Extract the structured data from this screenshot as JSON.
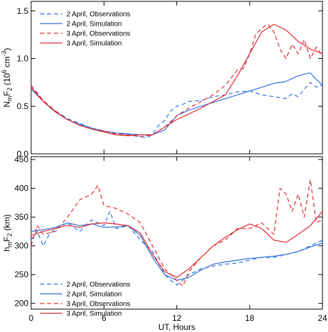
{
  "charts": {
    "x_axis": {
      "label": "UT, Hours",
      "ticks": [
        "0",
        "6",
        "12",
        "18",
        "24"
      ],
      "xlim": [
        0,
        24
      ]
    },
    "legend": [
      "2 April, Observations",
      "2 April, Simulation",
      "3 April, Observations",
      "3 April, Simulation"
    ],
    "colors": {
      "april2": "#2f6fde",
      "april3": "#e0262c"
    }
  },
  "chart_data": [
    {
      "type": "line",
      "ylabel": "NmF2 (10^6 cm^-3)",
      "ylabel_parts": {
        "base": "N",
        "sub1": "m",
        "mid": "F",
        "sub2": "2",
        "rest": " (10",
        "sup": "6",
        "unit": " cm",
        "sup2": "-3",
        "close": ")"
      },
      "ylim": [
        0,
        1.6
      ],
      "yticks": [
        "0.0",
        "0.5",
        "1.0",
        "1.5"
      ],
      "legend_position": "top-left",
      "series": [
        {
          "name": "2 April, Observations",
          "style": "dashed",
          "color": "#2f6fde",
          "x": [
            0,
            1,
            2,
            3,
            4,
            5,
            6,
            7,
            8,
            9,
            9.5,
            10,
            10.5,
            11,
            11.5,
            12,
            12.5,
            13,
            14,
            15,
            16,
            17,
            18,
            19,
            20,
            21,
            21.5,
            22,
            22.5,
            23,
            23.5,
            24
          ],
          "y": [
            0.7,
            0.55,
            0.45,
            0.37,
            0.32,
            0.27,
            0.24,
            0.22,
            0.2,
            0.18,
            0.17,
            0.2,
            0.3,
            0.35,
            0.45,
            0.5,
            0.52,
            0.55,
            0.56,
            0.6,
            0.62,
            0.65,
            0.66,
            0.62,
            0.6,
            0.58,
            0.63,
            0.6,
            0.68,
            0.75,
            0.7,
            0.72
          ]
        },
        {
          "name": "2 April, Simulation",
          "style": "solid",
          "color": "#2f6fde",
          "x": [
            0,
            1,
            2,
            3,
            4,
            5,
            6,
            7,
            8,
            9,
            10,
            11,
            12,
            13,
            14,
            15,
            16,
            17,
            18,
            19,
            20,
            21,
            22,
            23,
            23.5,
            24
          ],
          "y": [
            0.68,
            0.55,
            0.44,
            0.36,
            0.31,
            0.27,
            0.24,
            0.22,
            0.21,
            0.2,
            0.2,
            0.25,
            0.4,
            0.46,
            0.5,
            0.54,
            0.58,
            0.62,
            0.66,
            0.7,
            0.74,
            0.76,
            0.82,
            0.85,
            0.78,
            0.72
          ]
        },
        {
          "name": "3 April, Observations",
          "style": "dashed",
          "color": "#e0262c",
          "x": [
            0,
            1,
            2,
            3,
            4,
            5,
            6,
            7,
            8,
            9,
            10,
            11,
            12,
            13,
            14,
            15,
            16,
            17,
            17.5,
            18,
            18.5,
            19,
            19.5,
            20,
            20.5,
            21,
            21.5,
            22,
            22.5,
            23,
            23.5,
            24
          ],
          "y": [
            0.72,
            0.56,
            0.45,
            0.36,
            0.3,
            0.26,
            0.24,
            0.21,
            0.2,
            0.18,
            0.2,
            0.28,
            0.4,
            0.48,
            0.55,
            0.62,
            0.72,
            0.88,
            0.9,
            1.05,
            1.25,
            1.32,
            1.36,
            1.28,
            1.1,
            1.0,
            1.15,
            1.05,
            1.2,
            1.0,
            1.12,
            1.03
          ]
        },
        {
          "name": "3 April, Simulation",
          "style": "solid",
          "color": "#e0262c",
          "x": [
            0,
            1,
            2,
            3,
            4,
            5,
            6,
            7,
            8,
            9,
            10,
            11,
            12,
            13,
            14,
            15,
            16,
            17,
            18,
            19,
            20,
            21,
            22,
            23,
            24
          ],
          "y": [
            0.7,
            0.55,
            0.44,
            0.36,
            0.3,
            0.26,
            0.23,
            0.2,
            0.19,
            0.2,
            0.2,
            0.28,
            0.36,
            0.42,
            0.48,
            0.55,
            0.62,
            0.82,
            1.05,
            1.28,
            1.36,
            1.3,
            1.18,
            1.1,
            1.05
          ]
        }
      ]
    },
    {
      "type": "line",
      "ylabel": "hmF2 (km)",
      "ylabel_parts": {
        "base": "h",
        "sub1": "m",
        "mid": "F",
        "sub2": "2",
        "rest": " (km)"
      },
      "ylim": [
        190,
        455
      ],
      "yticks": [
        "200",
        "250",
        "300",
        "350",
        "400",
        "450"
      ],
      "legend_position": "bottom-left",
      "series": [
        {
          "name": "2 April, Observations",
          "style": "dashed",
          "color": "#2f6fde",
          "x": [
            0,
            0.5,
            1,
            1.5,
            2,
            3,
            4,
            5,
            6,
            6.5,
            7,
            8,
            9,
            10,
            11,
            11.5,
            12,
            12.5,
            13,
            14,
            15,
            16,
            17,
            18,
            19,
            20,
            21,
            22,
            23,
            24
          ],
          "y": [
            310,
            325,
            300,
            320,
            330,
            340,
            325,
            345,
            335,
            360,
            330,
            335,
            310,
            290,
            250,
            240,
            232,
            240,
            250,
            260,
            265,
            268,
            270,
            275,
            280,
            280,
            285,
            290,
            300,
            310
          ]
        },
        {
          "name": "2 April, Simulation",
          "style": "solid",
          "color": "#2f6fde",
          "x": [
            0,
            1,
            2,
            3,
            4,
            5,
            6,
            7,
            8,
            9,
            10,
            11,
            12,
            13,
            14,
            15,
            16,
            17,
            18,
            19,
            20,
            21,
            22,
            23,
            24
          ],
          "y": [
            325,
            328,
            332,
            340,
            335,
            338,
            332,
            333,
            335,
            318,
            280,
            250,
            240,
            245,
            258,
            268,
            272,
            275,
            278,
            280,
            282,
            285,
            290,
            298,
            305
          ]
        },
        {
          "name": "3 April, Observations",
          "style": "dashed",
          "color": "#e0262c",
          "x": [
            0,
            0.5,
            1,
            2,
            3,
            4,
            5,
            5.5,
            6,
            7,
            8,
            9,
            10,
            11,
            12,
            12.5,
            13,
            14,
            15,
            16,
            17,
            18,
            19,
            20,
            20.5,
            21,
            21.5,
            22,
            22.5,
            23,
            23.5,
            24
          ],
          "y": [
            300,
            335,
            320,
            325,
            350,
            380,
            390,
            405,
            370,
            365,
            355,
            340,
            300,
            260,
            240,
            230,
            255,
            280,
            300,
            310,
            330,
            330,
            340,
            320,
            400,
            390,
            360,
            390,
            350,
            415,
            340,
            345
          ]
        },
        {
          "name": "3 April, Simulation",
          "style": "solid",
          "color": "#e0262c",
          "x": [
            0,
            1,
            2,
            3,
            4,
            5,
            6,
            7,
            8,
            9,
            10,
            11,
            12,
            13,
            14,
            15,
            16,
            17,
            18,
            19,
            20,
            21,
            22,
            23,
            24
          ],
          "y": [
            318,
            325,
            330,
            336,
            332,
            338,
            340,
            338,
            335,
            322,
            285,
            255,
            245,
            260,
            280,
            300,
            315,
            328,
            338,
            330,
            310,
            306,
            320,
            335,
            360
          ]
        }
      ]
    }
  ]
}
